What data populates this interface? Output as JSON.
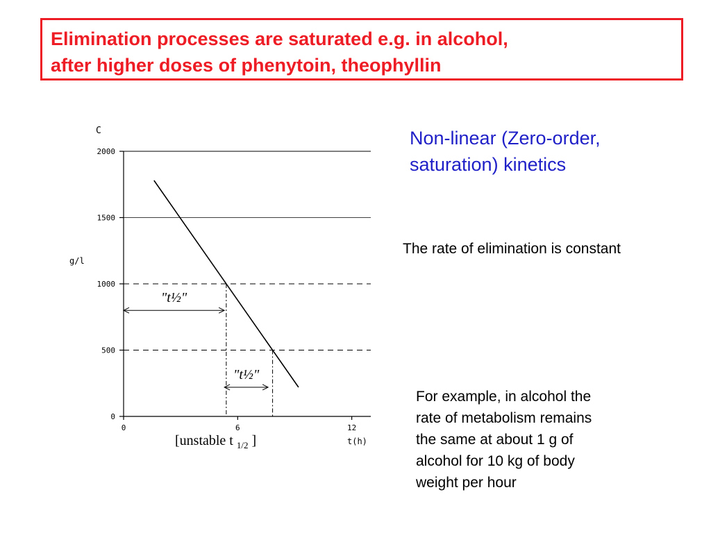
{
  "title": {
    "line1": "Elimination processes are saturated e.g. in alcohol,",
    "line2": "after higher doses of phenytoin, theophyllin"
  },
  "heading": {
    "line1": "Non-linear (Zero-order,",
    "line2": "saturation) kinetics"
  },
  "rate_text": "The rate of elimination is constant",
  "example_lines": [
    "For example, in alcohol the",
    "rate of  metabolism remains",
    "the same at about 1 g of",
    "alcohol for 10 kg of body",
    "weight per hour"
  ],
  "caption": {
    "prefix": "[unstable t",
    "sub": "1/2",
    "suffix": " ]"
  },
  "colors": {
    "title_red": "#ee1c24",
    "heading_blue": "#1f1fc8"
  },
  "chart_data": {
    "type": "line",
    "title": "",
    "ylabel_top": "C",
    "ylabel_unit": "g/l",
    "xlabel": "t(h)",
    "xlim": [
      0,
      13
    ],
    "ylim": [
      0,
      2000
    ],
    "yticks": [
      0,
      500,
      1000,
      1500,
      2000
    ],
    "xticks": [
      0,
      6,
      12
    ],
    "series": [
      {
        "x": [
          1.6,
          9.2
        ],
        "y": [
          1780,
          220
        ]
      }
    ],
    "reference_lines": [
      {
        "y": 1500,
        "style": "solid"
      },
      {
        "y": 1000,
        "style": "dashed"
      },
      {
        "y": 500,
        "style": "dashed"
      }
    ],
    "annotations": [
      {
        "text": "\"t½\"",
        "from_x": 0,
        "to_x": 5.3,
        "y_level": 800
      },
      {
        "text": "\"t½\"",
        "from_x": 5.3,
        "to_x": 7.6,
        "y_level": 220
      }
    ],
    "grid": false
  }
}
